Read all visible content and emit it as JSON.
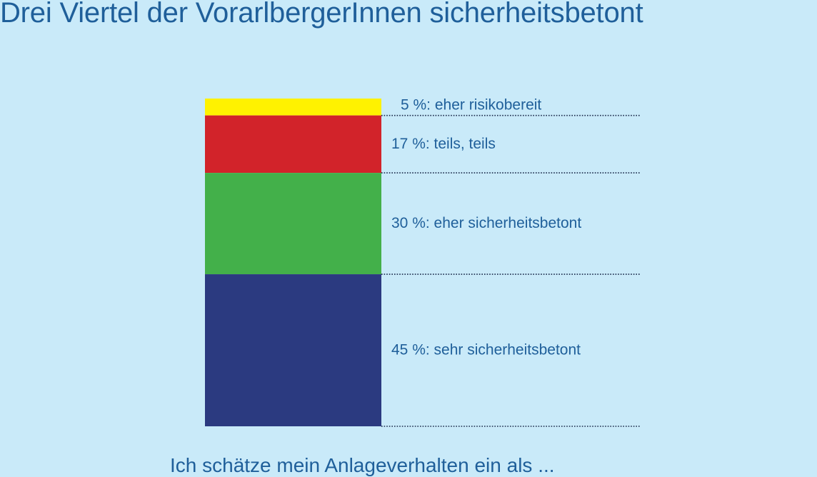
{
  "chart_data": {
    "type": "bar",
    "stacked": true,
    "title": "Drei Viertel der VorarlbergerInnen sicherheitsbetont",
    "xlabel": "Ich schätze mein Anlageverhalten ein als ...",
    "segments": [
      {
        "label": "5 %: eher risikobereit",
        "value": 5,
        "color": "#fff200"
      },
      {
        "label": "17 %: teils, teils",
        "value": 17,
        "color": "#d2232a"
      },
      {
        "label": "30 %: eher sicherheitsbetont",
        "value": 30,
        "color": "#43b04a"
      },
      {
        "label": "45 %: sehr sicherheitsbetont",
        "value": 45,
        "color": "#2b3a80"
      }
    ],
    "total": 97,
    "ylim": [
      0,
      97
    ],
    "grid": false,
    "legend": "none"
  },
  "colors": {
    "background": "#c9eaf9",
    "text": "#1f5f9a",
    "divider": "#1a2a4a"
  }
}
